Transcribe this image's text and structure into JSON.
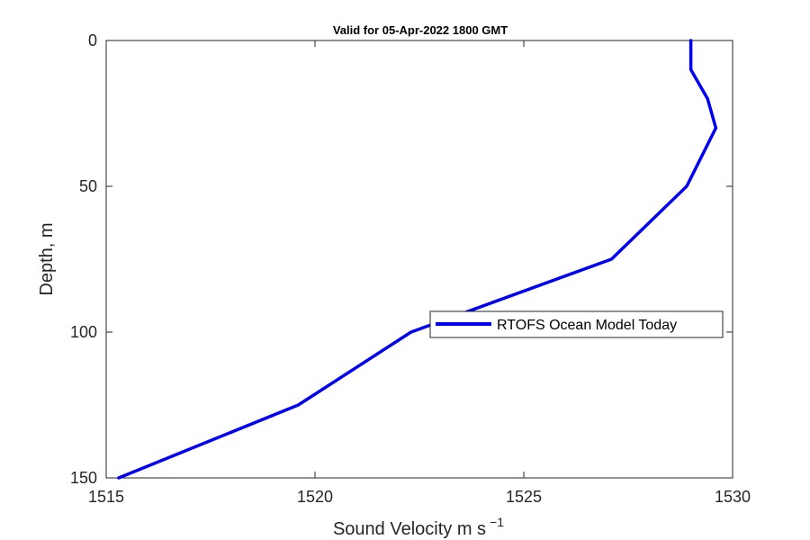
{
  "chart_data": {
    "type": "line",
    "title": "Valid for 05-Apr-2022 1800 GMT",
    "xlabel": "Sound Velocity m s",
    "xlabel_superscript": "−1",
    "ylabel": "Depth, m",
    "xlim": [
      1515,
      1530
    ],
    "ylim": [
      0,
      150
    ],
    "y_reversed": true,
    "x_ticks": [
      "1515",
      "1520",
      "1525",
      "1530"
    ],
    "y_ticks": [
      "0",
      "50",
      "100",
      "150"
    ],
    "grid": false,
    "legend_position": "middle-right",
    "series": [
      {
        "name": "RTOFS Ocean Model Today",
        "color": "#0000ee",
        "x": [
          1529.0,
          1529.0,
          1529.4,
          1529.6,
          1528.9,
          1527.1,
          1522.3,
          1519.6,
          1515.3
        ],
        "y": [
          0,
          10,
          20,
          30,
          50,
          75,
          100,
          125,
          150
        ]
      }
    ]
  }
}
